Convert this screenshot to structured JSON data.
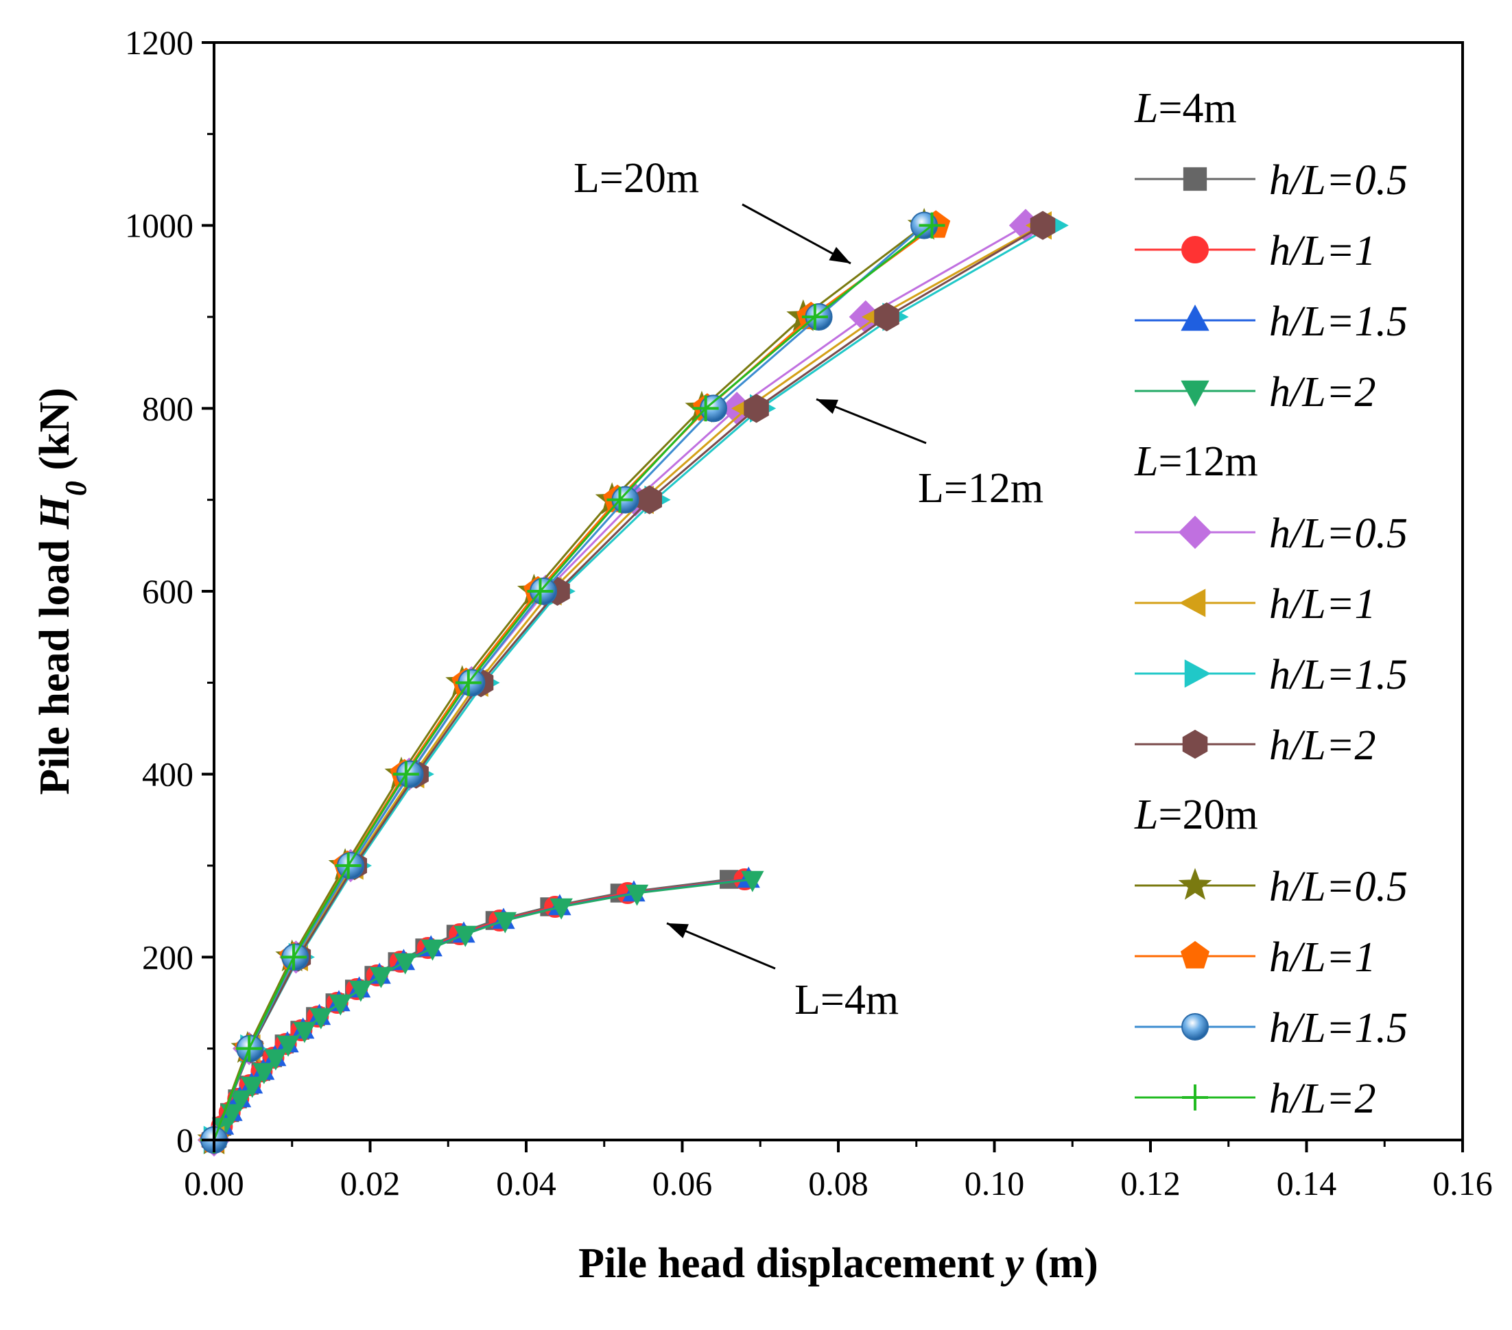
{
  "chart_data": {
    "type": "line",
    "title": "",
    "xlabel_main": "Pile head displacement ",
    "xlabel_var": "y",
    "xlabel_unit": " (m)",
    "ylabel_main": "Pile head load ",
    "ylabel_var": "H",
    "ylabel_sub": "0",
    "ylabel_unit": " (kN)",
    "xlim": [
      0,
      0.16
    ],
    "ylim": [
      0,
      1200
    ],
    "xticks": [
      0,
      0.02,
      0.04,
      0.06,
      0.08,
      0.1,
      0.12,
      0.14,
      0.16
    ],
    "xtick_labels": [
      "0.00",
      "0.02",
      "0.04",
      "0.06",
      "0.08",
      "0.10",
      "0.12",
      "0.14",
      "0.16"
    ],
    "yticks": [
      0,
      200,
      400,
      600,
      800,
      1000,
      1200
    ],
    "ytick_labels": [
      "0",
      "200",
      "400",
      "600",
      "800",
      "1000",
      "1200"
    ],
    "legend_groups": [
      {
        "label_var": "L",
        "label_rest": "=4m"
      },
      {
        "label_var": "L",
        "label_rest": "=12m"
      },
      {
        "label_var": "L",
        "label_rest": "=20m"
      }
    ],
    "series": [
      {
        "group": 0,
        "name": "h/L=0.5",
        "color": "#666666",
        "marker": "square",
        "x": [
          0.001,
          0.002,
          0.003,
          0.0045,
          0.006,
          0.0075,
          0.009,
          0.011,
          0.013,
          0.0155,
          0.018,
          0.0205,
          0.0235,
          0.027,
          0.031,
          0.036,
          0.043,
          0.052,
          0.066
        ],
        "y": [
          15,
          30,
          45,
          60,
          75,
          90,
          105,
          120,
          135,
          150,
          165,
          180,
          195,
          210,
          225,
          240,
          255,
          270,
          285
        ]
      },
      {
        "group": 0,
        "name": "h/L=1",
        "color": "#ff3333",
        "marker": "circle",
        "x": [
          0.001,
          0.002,
          0.0031,
          0.0046,
          0.0061,
          0.0076,
          0.0092,
          0.0112,
          0.0133,
          0.0158,
          0.0183,
          0.0209,
          0.0239,
          0.0274,
          0.0315,
          0.0366,
          0.0437,
          0.053,
          0.068
        ],
        "y": [
          15,
          30,
          45,
          60,
          75,
          90,
          105,
          120,
          135,
          150,
          165,
          180,
          195,
          210,
          225,
          240,
          255,
          270,
          285
        ]
      },
      {
        "group": 0,
        "name": "h/L=1.5",
        "color": "#1f5fe0",
        "marker": "triangle-up",
        "x": [
          0.0011,
          0.0022,
          0.0033,
          0.0048,
          0.0063,
          0.0078,
          0.0094,
          0.0114,
          0.0135,
          0.016,
          0.0186,
          0.0212,
          0.0243,
          0.0278,
          0.032,
          0.0371,
          0.0443,
          0.0538,
          0.0685
        ],
        "y": [
          15,
          30,
          45,
          60,
          75,
          90,
          105,
          120,
          135,
          150,
          165,
          180,
          195,
          210,
          225,
          240,
          255,
          270,
          285
        ]
      },
      {
        "group": 0,
        "name": "h/L=2",
        "color": "#22aa66",
        "marker": "triangle-down",
        "x": [
          0.0012,
          0.0023,
          0.0034,
          0.0049,
          0.0064,
          0.0079,
          0.0095,
          0.0116,
          0.0137,
          0.0162,
          0.0188,
          0.0214,
          0.0245,
          0.028,
          0.0322,
          0.0373,
          0.0445,
          0.0542,
          0.069
        ],
        "y": [
          15,
          30,
          45,
          60,
          75,
          90,
          105,
          120,
          135,
          150,
          165,
          180,
          195,
          210,
          225,
          240,
          255,
          270,
          285
        ]
      },
      {
        "group": 1,
        "name": "h/L=0.5",
        "color": "#c070e0",
        "marker": "diamond",
        "x": [
          0,
          0.0045,
          0.0105,
          0.0175,
          0.025,
          0.033,
          0.0425,
          0.054,
          0.067,
          0.0835,
          0.104
        ],
        "y": [
          0,
          100,
          200,
          300,
          400,
          500,
          600,
          700,
          800,
          900,
          1000
        ]
      },
      {
        "group": 1,
        "name": "h/L=1",
        "color": "#d4a017",
        "marker": "triangle-left",
        "x": [
          0,
          0.0046,
          0.0107,
          0.0178,
          0.0256,
          0.0338,
          0.0432,
          0.055,
          0.0683,
          0.085,
          0.106
        ],
        "y": [
          0,
          100,
          200,
          300,
          400,
          500,
          600,
          700,
          800,
          900,
          1000
        ]
      },
      {
        "group": 1,
        "name": "h/L=1.5",
        "color": "#20c8c8",
        "marker": "triangle-right",
        "x": [
          0,
          0.0047,
          0.0109,
          0.0182,
          0.0262,
          0.0346,
          0.0443,
          0.0565,
          0.07,
          0.087,
          0.1075
        ],
        "y": [
          0,
          100,
          200,
          300,
          400,
          500,
          600,
          700,
          800,
          900,
          1000
        ]
      },
      {
        "group": 1,
        "name": "h/L=2",
        "color": "#7a4a4a",
        "marker": "hexagon",
        "x": [
          0,
          0.0047,
          0.0108,
          0.018,
          0.0259,
          0.0342,
          0.044,
          0.0558,
          0.0695,
          0.0862,
          0.1062
        ],
        "y": [
          0,
          100,
          200,
          300,
          400,
          500,
          600,
          700,
          800,
          900,
          1000
        ]
      },
      {
        "group": 2,
        "name": "h/L=0.5",
        "color": "#7a7a10",
        "marker": "star",
        "x": [
          0,
          0.0043,
          0.01,
          0.0168,
          0.024,
          0.0318,
          0.041,
          0.051,
          0.0625,
          0.0755,
          0.091
        ],
        "y": [
          0,
          100,
          200,
          300,
          400,
          500,
          600,
          700,
          800,
          900,
          1000
        ]
      },
      {
        "group": 2,
        "name": "h/L=1",
        "color": "#ff6a00",
        "marker": "pentagon",
        "x": [
          0,
          0.0045,
          0.0102,
          0.0171,
          0.0244,
          0.0323,
          0.0415,
          0.0517,
          0.0632,
          0.0765,
          0.0925
        ],
        "y": [
          0,
          100,
          200,
          300,
          400,
          500,
          600,
          700,
          800,
          900,
          1000
        ]
      },
      {
        "group": 2,
        "name": "h/L=1.5",
        "color": "#3c8cd0",
        "marker": "sphere",
        "x": [
          0,
          0.0046,
          0.0104,
          0.0175,
          0.0251,
          0.033,
          0.0422,
          0.0527,
          0.064,
          0.0775,
          0.091
        ],
        "y": [
          0,
          100,
          200,
          300,
          400,
          500,
          600,
          700,
          800,
          900,
          1000
        ]
      },
      {
        "group": 2,
        "name": "h/L=2",
        "color": "#22bb22",
        "marker": "plus",
        "x": [
          0,
          0.0045,
          0.0102,
          0.0172,
          0.0246,
          0.0326,
          0.0418,
          0.052,
          0.063,
          0.077,
          0.092
        ],
        "y": [
          0,
          100,
          200,
          300,
          400,
          500,
          600,
          700,
          800,
          900,
          1000
        ]
      }
    ],
    "annotations": [
      {
        "label": "L=20m"
      },
      {
        "label": "L=12m"
      },
      {
        "label": "L=4m"
      }
    ]
  }
}
